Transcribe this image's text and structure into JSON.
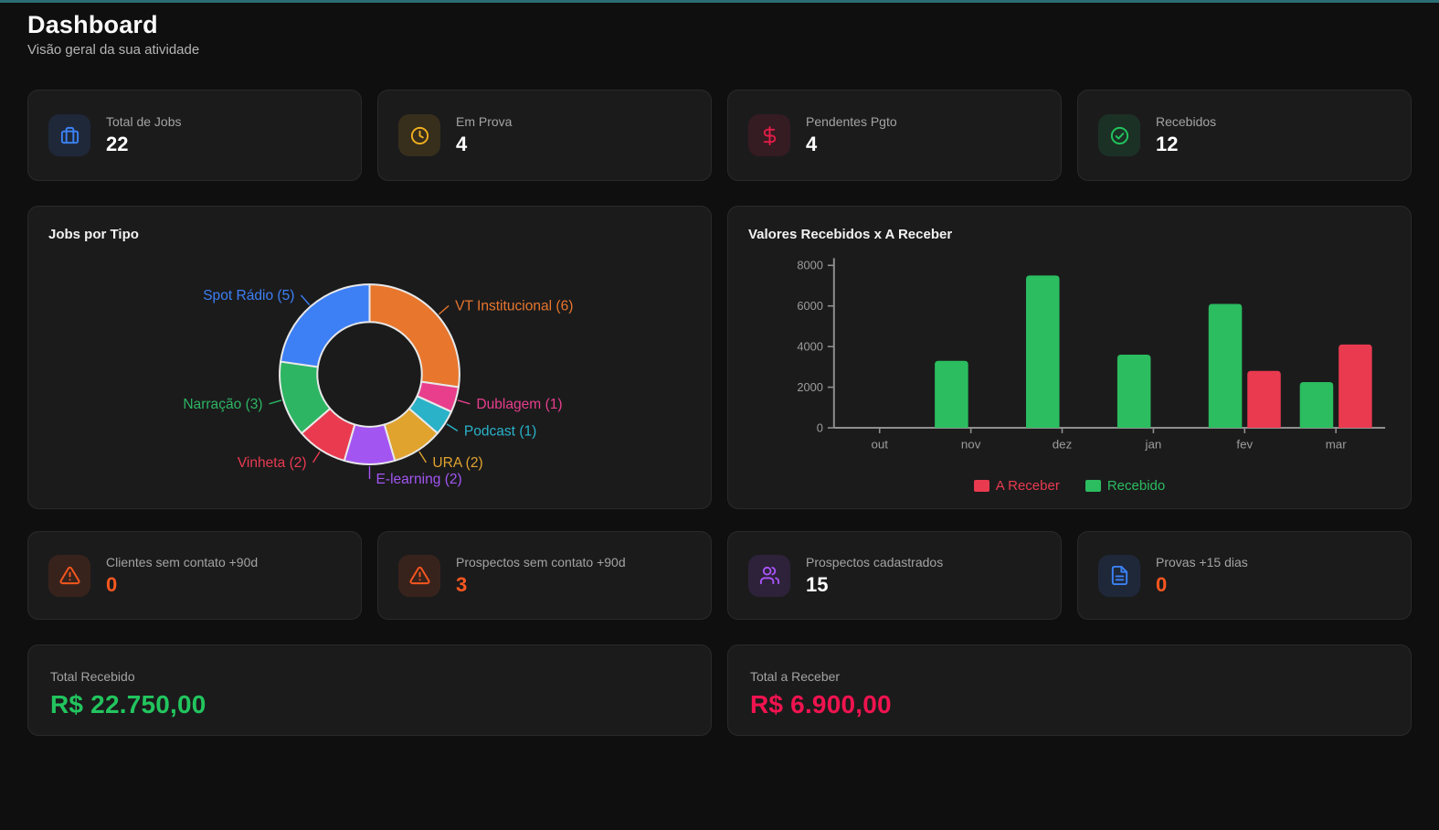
{
  "page": {
    "title": "Dashboard",
    "subtitle": "Visão geral da sua atividade"
  },
  "theme": {
    "accent_bar": "#2a6e74",
    "background": "#0f0f10",
    "card_background": "#1b1b1c",
    "axis_color": "#8f8f8f",
    "tick_label_color": "#9c9c9c"
  },
  "stat_cards_top": [
    {
      "label": "Total de Jobs",
      "value": "22",
      "icon": "briefcase-icon",
      "color": "#3b82f6",
      "value_color": "#ffffff"
    },
    {
      "label": "Em Prova",
      "value": "4",
      "icon": "clock-icon",
      "color": "#efaf21",
      "value_color": "#ffffff"
    },
    {
      "label": "Pendentes Pgto",
      "value": "4",
      "icon": "dollar-icon",
      "color": "#e11d48",
      "value_color": "#ffffff"
    },
    {
      "label": "Recebidos",
      "value": "12",
      "icon": "check-circle-icon",
      "color": "#22c55e",
      "value_color": "#ffffff"
    }
  ],
  "stat_cards_bottom": [
    {
      "label": "Clientes sem contato +90d",
      "value": "0",
      "icon": "alert-triangle-icon",
      "color": "#f7571f",
      "value_color": "#f7571f"
    },
    {
      "label": "Prospectos sem contato +90d",
      "value": "3",
      "icon": "alert-triangle-icon",
      "color": "#f7571f",
      "value_color": "#f7571f"
    },
    {
      "label": "Prospectos cadastrados",
      "value": "15",
      "icon": "users-icon",
      "color": "#a855f7",
      "value_color": "#ffffff"
    },
    {
      "label": "Provas +15 dias",
      "value": "0",
      "icon": "file-text-icon",
      "color": "#3b82f6",
      "value_color": "#f7571f"
    }
  ],
  "totals": [
    {
      "label": "Total Recebido",
      "value": "R$ 22.750,00",
      "color": "#22c55e"
    },
    {
      "label": "Total a Receber",
      "value": "R$ 6.900,00",
      "color": "#f0134f"
    }
  ],
  "chart_data": [
    {
      "type": "pie",
      "variant": "donut",
      "title": "Jobs por Tipo",
      "labels": [
        "VT Institucional",
        "Dublagem",
        "Podcast",
        "URA",
        "E-learning",
        "Vinheta",
        "Narração",
        "Spot Rádio"
      ],
      "values": [
        6,
        1,
        1,
        2,
        2,
        2,
        3,
        5
      ],
      "colors": [
        "#e8762d",
        "#e83e8c",
        "#29b2c8",
        "#e0a32e",
        "#a355f2",
        "#e93a50",
        "#2db563",
        "#3d7ff5"
      ],
      "label_format": "name (value)",
      "legend_position": "callout-labels"
    },
    {
      "type": "bar",
      "title": "Valores Recebidos x A Receber",
      "categories": [
        "out",
        "nov",
        "dez",
        "jan",
        "fev",
        "mar"
      ],
      "series": [
        {
          "name": "A Receber",
          "color": "#e93a4f",
          "values": [
            0,
            0,
            0,
            0,
            2800,
            4100
          ]
        },
        {
          "name": "Recebido",
          "color": "#2bbd5f",
          "values": [
            0,
            3300,
            7500,
            3600,
            6100,
            2250
          ]
        }
      ],
      "ylim": [
        0,
        8000
      ],
      "yticks": [
        0,
        2000,
        4000,
        6000,
        8000
      ],
      "grid": false,
      "legend_position": "bottom"
    }
  ]
}
